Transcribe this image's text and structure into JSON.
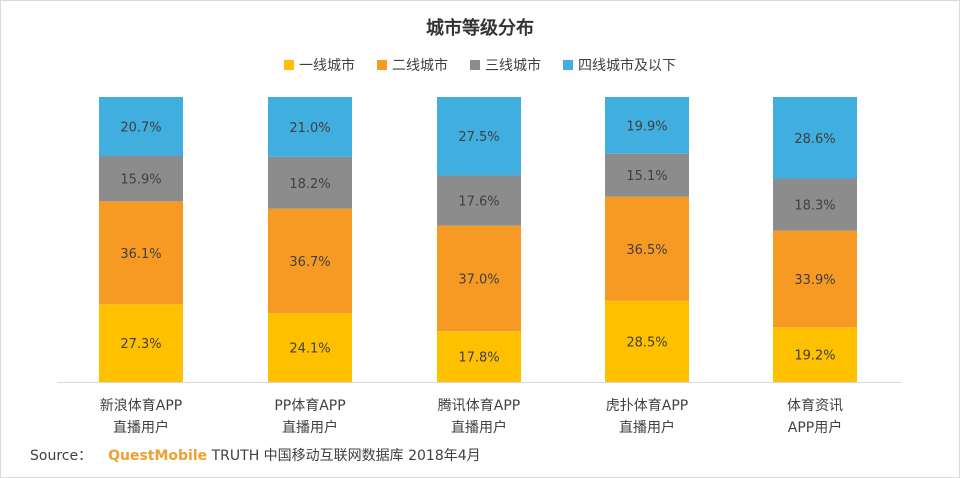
{
  "chart_data": {
    "type": "bar",
    "stacked": true,
    "title": "城市等级分布",
    "categories": [
      [
        "新浪体育APP",
        "直播用户"
      ],
      [
        "PP体育APP",
        "直播用户"
      ],
      [
        "腾讯体育APP",
        "直播用户"
      ],
      [
        "虎扑体育APP",
        "直播用户"
      ],
      [
        "体育资讯",
        "APP用户"
      ]
    ],
    "series": [
      {
        "name": "一线城市",
        "color": "#ffc000",
        "values": [
          27.3,
          24.1,
          17.8,
          28.5,
          19.2
        ],
        "labels": [
          "27.3%",
          "24.1%",
          "17.8%",
          "28.5%",
          "19.2%"
        ]
      },
      {
        "name": "二线城市",
        "color": "#f79a24",
        "values": [
          36.1,
          36.7,
          37.0,
          36.5,
          33.9
        ],
        "labels": [
          "36.1%",
          "36.7%",
          "37.0%",
          "36.5%",
          "33.9%"
        ]
      },
      {
        "name": "三线城市",
        "color": "#8c8c8c",
        "values": [
          15.9,
          18.2,
          17.6,
          15.1,
          18.3
        ],
        "labels": [
          "15.9%",
          "18.2%",
          "17.6%",
          "15.1%",
          "18.3%"
        ]
      },
      {
        "name": "四线城市及以下",
        "color": "#41aee0",
        "values": [
          20.7,
          21.0,
          27.5,
          19.9,
          28.6
        ],
        "labels": [
          "20.7%",
          "21.0%",
          "27.5%",
          "19.9%",
          "28.6%"
        ]
      }
    ],
    "ylim": [
      0,
      100
    ],
    "legend_position": "top",
    "grid": false
  },
  "source": {
    "prefix": "Source：",
    "brand": "QuestMobile",
    "rest": "TRUTH 中国移动互联网数据库 2018年4月"
  }
}
